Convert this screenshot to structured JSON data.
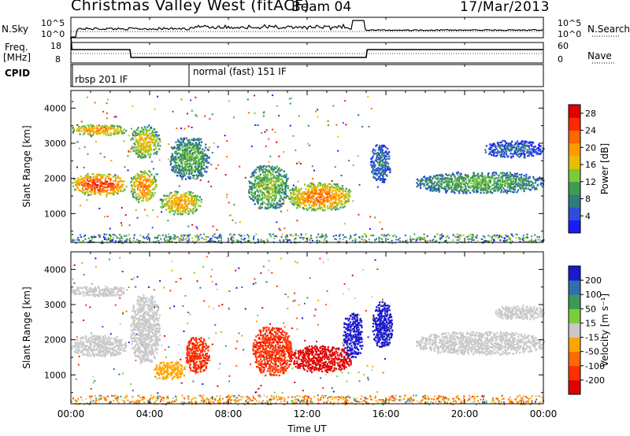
{
  "header": {
    "station": "Christmas Valley West (fitACF)",
    "beam": "Beam 04",
    "date": "17/Mar/2013"
  },
  "noise_panel": {
    "left_label": "N.Sky",
    "right_label": "N.Search",
    "ticks_left": [
      "10^5",
      "10^0"
    ],
    "ticks_right": [
      "10^5",
      "10^0"
    ]
  },
  "freq_panel": {
    "left_label_line1": "Freq.",
    "left_label_line2": "[MHz]",
    "right_label": "Nave",
    "ticks_left": [
      "18",
      "8"
    ],
    "ticks_right": [
      "60",
      "0"
    ]
  },
  "cpid": {
    "label": "CPID",
    "modes": [
      {
        "name": "rbsp 201 IF",
        "start_hour": 0
      },
      {
        "name": "normal (fast) 151 IF",
        "start_hour": 6
      }
    ]
  },
  "chart_data": [
    {
      "type": "heatmap",
      "panel": "power",
      "xlabel": "Time UT",
      "ylabel": "Slant Range [km]",
      "x_ticks": [
        "00:00",
        "04:00",
        "08:00",
        "12:00",
        "16:00",
        "20:00",
        "00:00"
      ],
      "xlim_hours": [
        0,
        24
      ],
      "y_ticks": [
        1000,
        2000,
        3000,
        4000
      ],
      "ylim_km": [
        180,
        4500
      ],
      "colorbar": {
        "label": "Power [dB]",
        "ticks": [
          28,
          24,
          20,
          16,
          12,
          8,
          4
        ],
        "range": [
          0,
          30
        ],
        "colors": [
          "#1a1aff",
          "#2b4fd8",
          "#2f7d7d",
          "#3f9a55",
          "#7ec83a",
          "#e6c000",
          "#ff9a00",
          "#ff6600",
          "#ff2a00",
          "#e00000"
        ]
      },
      "echo_regions": [
        {
          "t0": 0.0,
          "t1": 2.8,
          "r0": 1550,
          "r1": 2150,
          "level": 26
        },
        {
          "t0": 0.0,
          "t1": 2.8,
          "r0": 3250,
          "r1": 3550,
          "level": 21
        },
        {
          "t0": 3.0,
          "t1": 4.3,
          "r0": 1350,
          "r1": 2250,
          "level": 22
        },
        {
          "t0": 3.0,
          "t1": 4.5,
          "r0": 2600,
          "r1": 3500,
          "level": 18
        },
        {
          "t0": 4.5,
          "t1": 6.6,
          "r0": 1000,
          "r1": 1650,
          "level": 20
        },
        {
          "t0": 5.0,
          "t1": 7.0,
          "r0": 2000,
          "r1": 3200,
          "level": 12
        },
        {
          "t0": 9.0,
          "t1": 11.0,
          "r0": 1150,
          "r1": 2400,
          "level": 14
        },
        {
          "t0": 11.0,
          "t1": 14.2,
          "r0": 1100,
          "r1": 1900,
          "level": 22
        },
        {
          "t0": 15.2,
          "t1": 16.2,
          "r0": 1900,
          "r1": 3000,
          "level": 7
        },
        {
          "t0": 17.5,
          "t1": 24.0,
          "r0": 1600,
          "r1": 2200,
          "level": 12
        },
        {
          "t0": 21.0,
          "t1": 24.0,
          "r0": 2600,
          "r1": 3100,
          "level": 6
        }
      ]
    },
    {
      "type": "heatmap",
      "panel": "velocity",
      "xlabel": "Time UT",
      "ylabel": "Slant Range [km]",
      "x_ticks": [
        "00:00",
        "04:00",
        "08:00",
        "12:00",
        "16:00",
        "20:00",
        "00:00"
      ],
      "xlim_hours": [
        0,
        24
      ],
      "y_ticks": [
        1000,
        2000,
        3000,
        4000
      ],
      "ylim_km": [
        180,
        4500
      ],
      "colorbar": {
        "label": "Velocity [m s⁻¹]",
        "ticks": [
          200,
          100,
          50,
          15,
          -15,
          -50,
          -100,
          -200
        ],
        "range": [
          -250,
          250
        ],
        "colors": [
          "#e00000",
          "#ff3000",
          "#ff6a00",
          "#ffa500",
          "#c8c8c8",
          "#7ccd3c",
          "#3a9a5a",
          "#2f6fb0",
          "#1a1acc"
        ]
      },
      "echo_regions": [
        {
          "t0": 0.0,
          "t1": 2.8,
          "r0": 1550,
          "r1": 2150,
          "v": 0
        },
        {
          "t0": 0.0,
          "t1": 2.8,
          "r0": 3250,
          "r1": 3550,
          "v": 0
        },
        {
          "t0": 3.0,
          "t1": 4.5,
          "r0": 1350,
          "r1": 3300,
          "v": 0
        },
        {
          "t0": 4.2,
          "t1": 5.8,
          "r0": 900,
          "r1": 1400,
          "v": -60
        },
        {
          "t0": 5.8,
          "t1": 7.0,
          "r0": 1100,
          "r1": 2100,
          "v": -180
        },
        {
          "t0": 9.2,
          "t1": 11.2,
          "r0": 1000,
          "r1": 2400,
          "v": -180
        },
        {
          "t0": 11.2,
          "t1": 14.2,
          "r0": 1100,
          "r1": 1850,
          "v": -220
        },
        {
          "t0": 13.8,
          "t1": 14.8,
          "r0": 1500,
          "r1": 2800,
          "v": 220
        },
        {
          "t0": 15.3,
          "t1": 16.3,
          "r0": 1800,
          "r1": 3100,
          "v": 220
        },
        {
          "t0": 17.5,
          "t1": 24.0,
          "r0": 1600,
          "r1": 2250,
          "v": 0
        },
        {
          "t0": 21.5,
          "t1": 24.0,
          "r0": 2600,
          "r1": 3000,
          "v": 0
        }
      ]
    }
  ]
}
